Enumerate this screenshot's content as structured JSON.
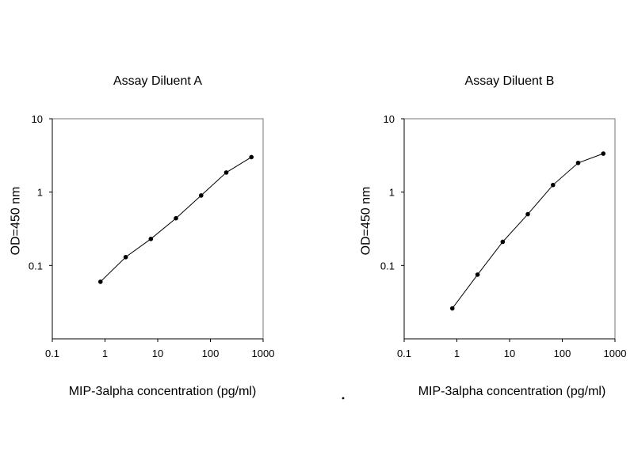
{
  "chart_data": [
    {
      "type": "line",
      "title": "Assay Diluent A",
      "xlabel": "MIP-3alpha concentration (pg/ml)",
      "ylabel": "OD=450 nm",
      "xscale": "log",
      "yscale": "log",
      "xlim": [
        0.1,
        1000
      ],
      "ylim": [
        0.01,
        10
      ],
      "xticks": [
        "0.1",
        "1",
        "10",
        "100",
        "1000"
      ],
      "yticks": [
        "0.1",
        "1",
        "10"
      ],
      "grid": false,
      "series": [
        {
          "x": [
            0.82,
            2.47,
            7.41,
            22.2,
            66.7,
            200,
            600
          ],
          "y": [
            0.06,
            0.13,
            0.23,
            0.44,
            0.9,
            1.85,
            3.0
          ]
        }
      ]
    },
    {
      "type": "line",
      "title": "Assay Diluent B",
      "xlabel": "MIP-3alpha concentration (pg/ml)",
      "ylabel": "OD=450 nm",
      "xscale": "log",
      "yscale": "log",
      "xlim": [
        0.1,
        1000
      ],
      "ylim": [
        0.01,
        10
      ],
      "xticks": [
        "0.1",
        "1",
        "10",
        "100",
        "1000"
      ],
      "yticks": [
        "0.1",
        "1",
        "10"
      ],
      "grid": false,
      "series": [
        {
          "x": [
            0.82,
            2.47,
            7.41,
            22.2,
            66.7,
            200,
            600
          ],
          "y": [
            0.026,
            0.075,
            0.21,
            0.5,
            1.25,
            2.5,
            3.35
          ]
        }
      ]
    }
  ]
}
